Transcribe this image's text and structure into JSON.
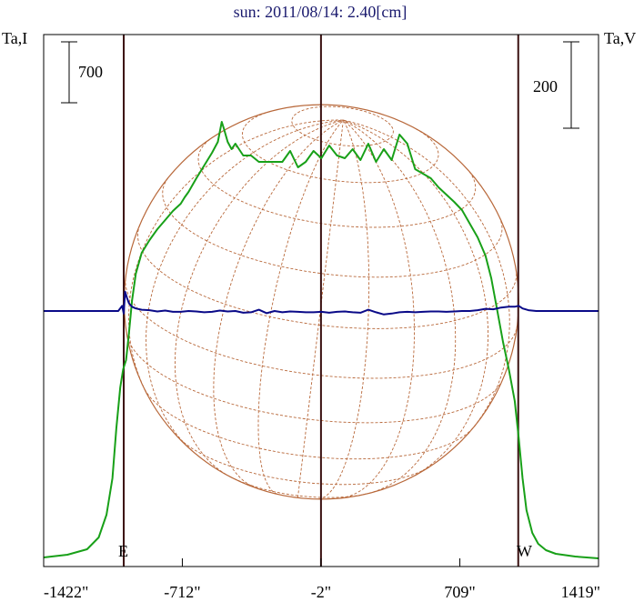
{
  "chart_data": {
    "type": "line",
    "title": "sun: 2011/08/14: 2.40[cm]",
    "left_axis_label": "Ta,I",
    "right_axis_label": "Ta,V",
    "left_scale_bar_label": "700",
    "right_scale_bar_label": "200",
    "limb_labels": {
      "east": "E",
      "west": "W"
    },
    "x_tick_labels": [
      "-1422\"",
      "-712\"",
      "-2\"",
      "709\"",
      "1419\""
    ],
    "x_ticks": [
      -1422,
      -712,
      -2,
      709,
      1419
    ],
    "xlim": [
      -1422,
      1419
    ],
    "limb_lines_x": [
      -1012,
      -2,
      1008
    ],
    "solar_radius_arcsec": 1010,
    "grid": false,
    "colors": {
      "title": "#1a1a6e",
      "series_I": "#18a018",
      "series_V": "#0a0a88",
      "disk": "#b8683a",
      "limb_lines": "#3a1010",
      "axes": "#000000"
    },
    "series": [
      {
        "name": "Ta,I",
        "axis": "left",
        "x": [
          -1422,
          -1300,
          -1200,
          -1140,
          -1100,
          -1070,
          -1050,
          -1030,
          -1015,
          -1000,
          -985,
          -970,
          -950,
          -920,
          -880,
          -840,
          -800,
          -760,
          -720,
          -700,
          -680,
          -640,
          -600,
          -560,
          -530,
          -510,
          -500,
          -480,
          -460,
          -440,
          -400,
          -360,
          -320,
          -280,
          -240,
          -200,
          -160,
          -120,
          -80,
          -40,
          0,
          40,
          80,
          120,
          160,
          200,
          240,
          280,
          320,
          360,
          400,
          440,
          480,
          520,
          560,
          600,
          640,
          680,
          720,
          760,
          800,
          840,
          870,
          900,
          930,
          960,
          990,
          1010,
          1030,
          1050,
          1080,
          1110,
          1150,
          1200,
          1300,
          1419
        ],
        "y": [
          30,
          60,
          120,
          250,
          500,
          900,
          1450,
          1900,
          2100,
          2200,
          2500,
          2850,
          3150,
          3380,
          3520,
          3640,
          3740,
          3840,
          3920,
          3990,
          4050,
          4200,
          4340,
          4480,
          4600,
          4820,
          4750,
          4600,
          4520,
          4580,
          4450,
          4450,
          4380,
          4380,
          4380,
          4380,
          4500,
          4320,
          4380,
          4500,
          4420,
          4560,
          4450,
          4420,
          4520,
          4400,
          4580,
          4380,
          4520,
          4400,
          4680,
          4580,
          4300,
          4250,
          4200,
          4100,
          4020,
          3940,
          3850,
          3700,
          3550,
          3350,
          3100,
          2750,
          2400,
          2100,
          1750,
          1350,
          900,
          550,
          300,
          180,
          110,
          70,
          40,
          20
        ]
      },
      {
        "name": "Ta,V",
        "axis": "right",
        "x": [
          -1422,
          -1300,
          -1200,
          -1100,
          -1040,
          -1020,
          -1012,
          -1005,
          -995,
          -985,
          -970,
          -950,
          -920,
          -880,
          -840,
          -800,
          -760,
          -720,
          -680,
          -640,
          -600,
          -560,
          -520,
          -480,
          -440,
          -400,
          -360,
          -320,
          -280,
          -240,
          -200,
          -160,
          -120,
          -80,
          -40,
          0,
          40,
          80,
          120,
          160,
          200,
          240,
          280,
          320,
          360,
          400,
          440,
          480,
          520,
          560,
          600,
          640,
          680,
          720,
          760,
          800,
          840,
          880,
          920,
          960,
          990,
          1010,
          1030,
          1060,
          1100,
          1150,
          1200,
          1300,
          1419
        ],
        "y": [
          0,
          0,
          0,
          0,
          0,
          12,
          -6,
          45,
          30,
          18,
          10,
          6,
          3,
          2,
          -1,
          1,
          -2,
          -2,
          0,
          -1,
          -3,
          -2,
          1,
          -1,
          0,
          -4,
          -3,
          3,
          -5,
          0,
          -3,
          -1,
          -2,
          -3,
          -3,
          -2,
          -4,
          -2,
          -1,
          -3,
          -4,
          3,
          -3,
          -8,
          -6,
          -3,
          -2,
          -3,
          -2,
          -1,
          -1,
          -2,
          -1,
          0,
          0,
          2,
          5,
          4,
          8,
          10,
          10,
          12,
          6,
          2,
          0,
          0,
          0,
          0,
          0
        ]
      }
    ]
  }
}
